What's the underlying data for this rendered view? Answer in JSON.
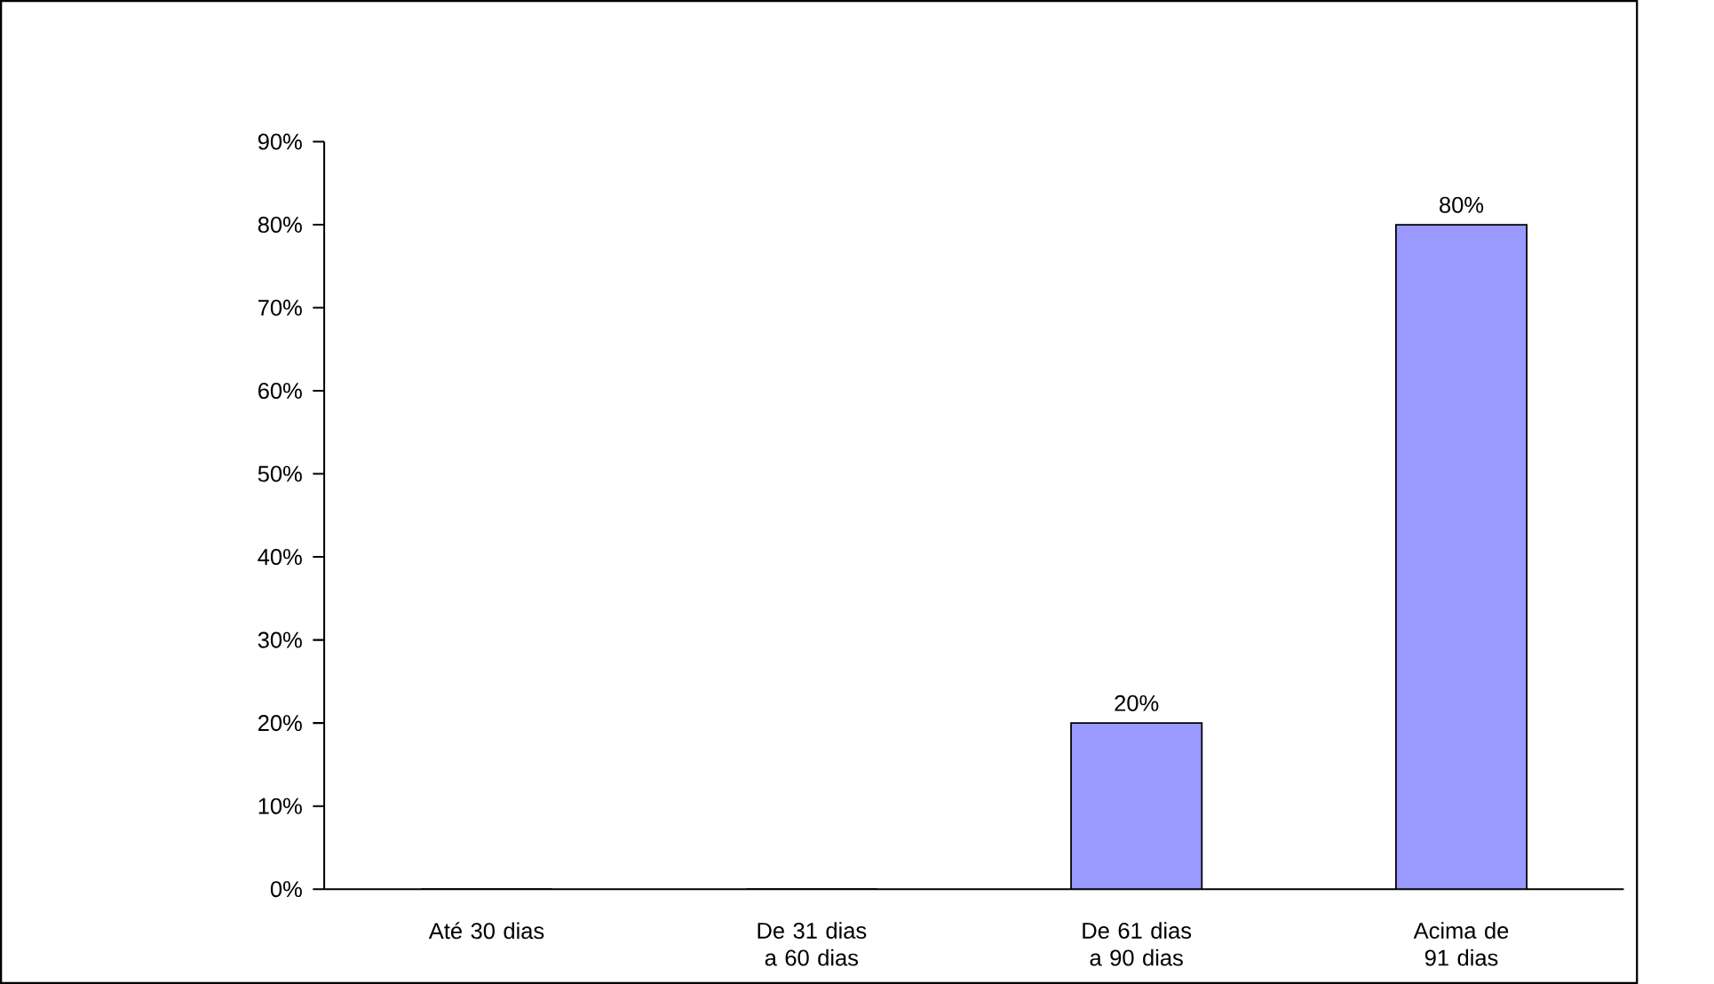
{
  "chart_data": {
    "type": "bar",
    "categories": [
      "Até 30 dias",
      "De 31 dias a 60 dias",
      "De 61 dias a 90 dias",
      "Acima de 91 dias"
    ],
    "values": [
      0,
      0,
      20,
      80
    ],
    "value_labels": [
      null,
      null,
      "20%",
      "80%"
    ],
    "color": "#9999ff",
    "ylim": [
      0,
      90
    ],
    "yticks": [
      {
        "value": 0,
        "label": "0%"
      },
      {
        "value": 10,
        "label": "10%"
      },
      {
        "value": 20,
        "label": "20%"
      },
      {
        "value": 30,
        "label": "30%"
      },
      {
        "value": 40,
        "label": "40%"
      },
      {
        "value": 50,
        "label": "50%"
      },
      {
        "value": 60,
        "label": "60%"
      },
      {
        "value": 70,
        "label": "70%"
      },
      {
        "value": 80,
        "label": "80%"
      },
      {
        "value": 90,
        "label": "90%"
      }
    ]
  }
}
